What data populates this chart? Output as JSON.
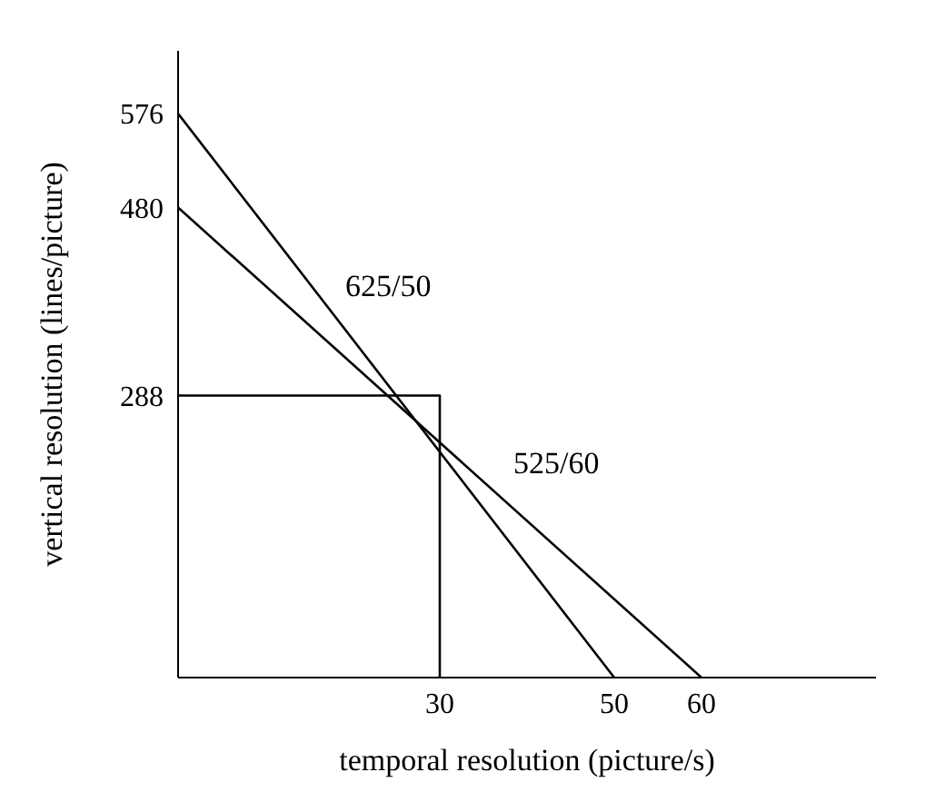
{
  "chart_data": {
    "type": "line",
    "xlabel": "temporal resolution (picture/s)",
    "ylabel": "vertical resolution (lines/picture)",
    "xlim": [
      0,
      80
    ],
    "ylim": [
      0,
      640
    ],
    "xticks": [
      30,
      50,
      60
    ],
    "yticks": [
      288,
      480,
      576
    ],
    "grid": false,
    "legend": false,
    "marker": "none",
    "line_style": "solid",
    "series": [
      {
        "name": "625/50",
        "color": "#000000",
        "x": [
          0,
          50
        ],
        "values": [
          576,
          0
        ]
      },
      {
        "name": "525/60",
        "color": "#000000",
        "x": [
          0,
          60
        ],
        "values": [
          480,
          0
        ]
      },
      {
        "color": "#000000",
        "x": [
          0,
          30,
          30
        ],
        "values": [
          288,
          288,
          0
        ]
      }
    ]
  }
}
